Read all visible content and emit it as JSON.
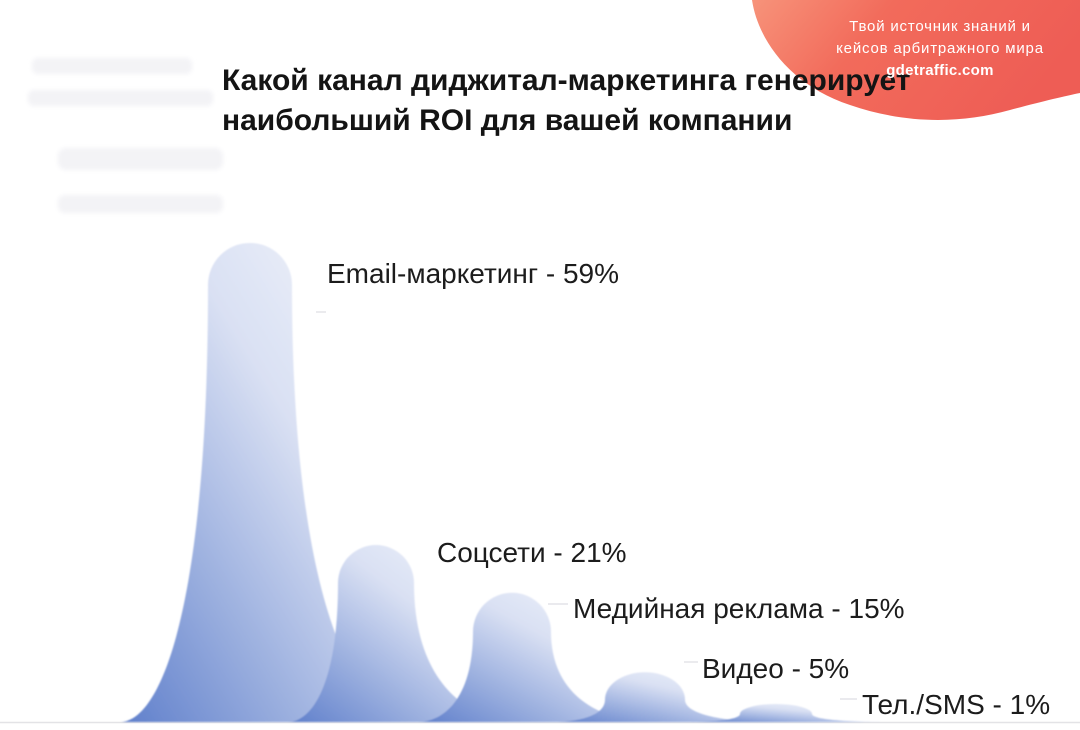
{
  "chart_data": {
    "type": "area",
    "title": "Какой канал диджитал-маркетинга генерирует\nнаибольший ROI для вашей компании",
    "categories": [
      "Email-маркетинг",
      "Соцсети",
      "Медийная реклама",
      "Видео",
      "Тел./SMS"
    ],
    "values": [
      59,
      21,
      15,
      5,
      1
    ],
    "unit": "%",
    "data_labels": [
      "Email-маркетинг - 59%",
      "Соцсети - 21%",
      "Медийная реклама - 15%",
      "Видео - 5%",
      "Тел./SMS - 1%"
    ],
    "xlabel": "",
    "ylabel": "",
    "grid": false
  },
  "branding": {
    "tagline": [
      "Твой источник знаний и",
      "кейсов арбитражного мира"
    ],
    "site": "gdetraffic.com"
  },
  "colors": {
    "brand": "#f26b5b",
    "peak_dark": "#5f7fcb",
    "peak_light": "#f7f8fc",
    "text": "#1c1c1c",
    "brand_text": "#ffffff"
  }
}
